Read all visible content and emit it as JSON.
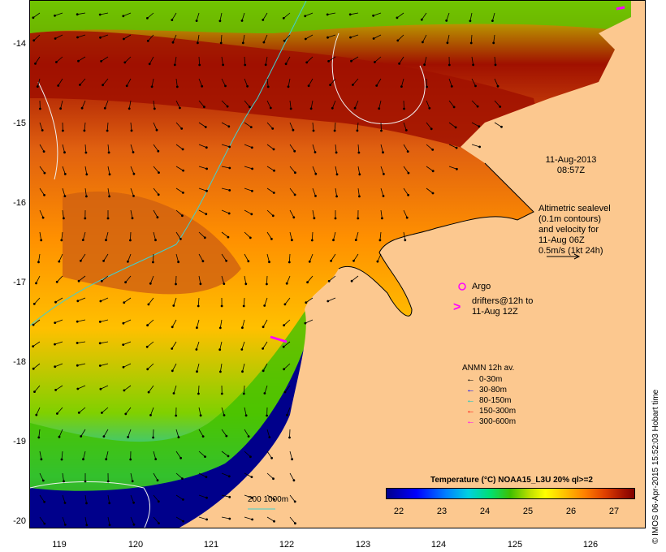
{
  "map": {
    "date_line": "11-Aug-2013",
    "time_line": "08:57Z",
    "altimetry_lines": [
      "Altimetric sealevel",
      "(0.1m contours)",
      "and velocity for",
      "11-Aug 06Z",
      "0.5m/s (1kt 24h)"
    ],
    "argo_label": "Argo",
    "drifters_lines": [
      "drifters@12h to",
      "11-Aug 12Z"
    ],
    "anmn_title": "ANMN 12h av.",
    "anmn_items": [
      {
        "label": "0-30m",
        "color": "#000000"
      },
      {
        "label": "30-80m",
        "color": "#0000ff"
      },
      {
        "label": "80-150m",
        "color": "#00c8c8"
      },
      {
        "label": "150-300m",
        "color": "#ff0000"
      },
      {
        "label": "300-600m",
        "color": "#ff00ff"
      }
    ],
    "depth_contour_label": "200  1000m",
    "credit": "© IMOS 06-Apr-2015 15:52:03 Hobart time"
  },
  "axes": {
    "lat_labels": [
      "-14",
      "-15",
      "-16",
      "-17",
      "-18",
      "-19",
      "-20"
    ],
    "lon_labels": [
      "119",
      "120",
      "121",
      "122",
      "123",
      "124",
      "125",
      "126"
    ]
  },
  "colorbar": {
    "title": "Temperature (°C) NOAA15_L3U 20% ql>=2",
    "ticks": [
      "22",
      "23",
      "24",
      "25",
      "26",
      "27"
    ]
  },
  "colors": {
    "land": "#fcc88f",
    "argo": "#ff00ff",
    "contour": "#40d0d0"
  }
}
